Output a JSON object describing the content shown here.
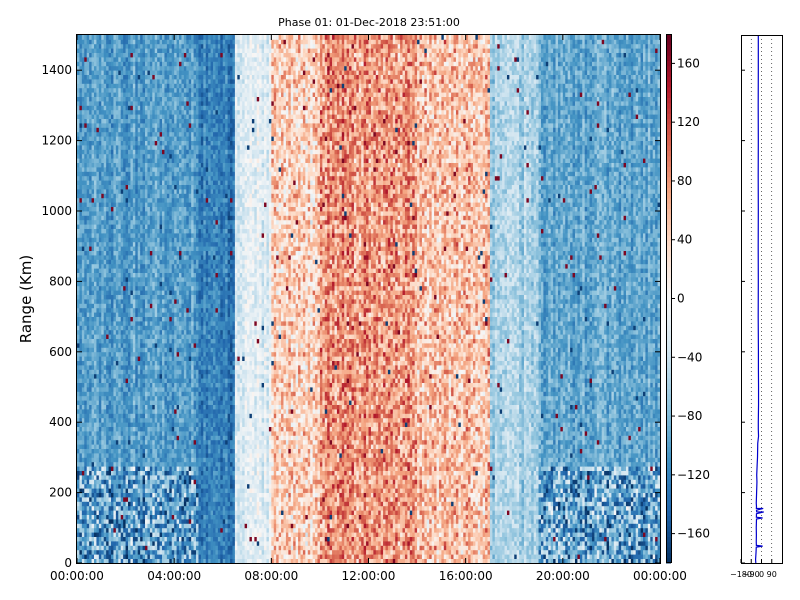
{
  "chart_data": [
    {
      "type": "heatmap",
      "title": "Phase 01: 01-Dec-2018 23:51:00",
      "xlabel": "",
      "ylabel": "Range (Km)",
      "xlim": [
        "00:00:00",
        "24:00:00"
      ],
      "x_ticks": [
        "00:00:00",
        "04:00:00",
        "08:00:00",
        "12:00:00",
        "16:00:00",
        "20:00:00",
        "00:00:00"
      ],
      "ylim": [
        0,
        1500
      ],
      "y_ticks": [
        0,
        200,
        400,
        600,
        800,
        1000,
        1200,
        1400
      ],
      "colormap": "RdBu_r",
      "colorbar": {
        "range": [
          -180,
          180
        ],
        "ticks": [
          -160,
          -120,
          -80,
          -40,
          0,
          40,
          80,
          120,
          160
        ]
      },
      "phase_pattern_by_hour": [
        {
          "hour_range": [
            0,
            5
          ],
          "typical_value": -100
        },
        {
          "hour_range": [
            5,
            6.5
          ],
          "typical_value": -125
        },
        {
          "hour_range": [
            6.5,
            8
          ],
          "typical_value": -20
        },
        {
          "hour_range": [
            8,
            10
          ],
          "typical_value": 40
        },
        {
          "hour_range": [
            10,
            14
          ],
          "typical_value": 80
        },
        {
          "hour_range": [
            14,
            17
          ],
          "typical_value": 50
        },
        {
          "hour_range": [
            17,
            19
          ],
          "typical_value": -60
        },
        {
          "hour_range": [
            19,
            24
          ],
          "typical_value": -95
        }
      ],
      "grid": false
    },
    {
      "type": "line",
      "title": "",
      "xlabel": "",
      "ylabel": "",
      "x_ticks": [
        "−180",
        "−90",
        "0",
        "90"
      ],
      "xlim": [
        -180,
        180
      ],
      "ylim": [
        0,
        1500
      ],
      "grid": "vertical dotted",
      "series": [
        {
          "color": "#0000cc",
          "points": [
            [
              -28,
              1500
            ],
            [
              -28,
              1400
            ],
            [
              -29,
              1300
            ],
            [
              -28,
              1200
            ],
            [
              -29,
              1100
            ],
            [
              -28,
              1000
            ],
            [
              -29,
              900
            ],
            [
              -28,
              800
            ],
            [
              -29,
              700
            ],
            [
              -28,
              650
            ],
            [
              -27,
              600
            ],
            [
              -27,
              550
            ],
            [
              -26,
              500
            ],
            [
              -26,
              450
            ],
            [
              -28,
              400
            ],
            [
              -28,
              380
            ],
            [
              -26,
              360
            ],
            [
              -33,
              340
            ],
            [
              -35,
              300
            ],
            [
              -38,
              280
            ],
            [
              -42,
              250
            ],
            [
              -40,
              230
            ],
            [
              -43,
              200
            ],
            [
              -45,
              180
            ],
            [
              -46,
              170
            ],
            [
              -44,
              160
            ],
            [
              -45,
              155
            ],
            [
              15,
              155
            ],
            [
              -44,
              150
            ],
            [
              -42,
              145
            ],
            [
              20,
              145
            ],
            [
              -44,
              140
            ],
            [
              -45,
              130
            ],
            [
              10,
              128
            ],
            [
              -44,
              125
            ],
            [
              -46,
              100
            ],
            [
              -45,
              80
            ],
            [
              -46,
              60
            ],
            [
              -45,
              50
            ],
            [
              10,
              48
            ],
            [
              -46,
              45
            ],
            [
              -48,
              30
            ],
            [
              -50,
              20
            ],
            [
              -52,
              10
            ],
            [
              -50,
              0
            ]
          ]
        }
      ]
    }
  ]
}
